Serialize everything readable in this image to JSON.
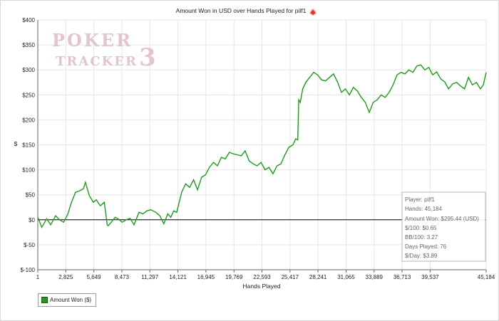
{
  "colors": {
    "series": "#1f9a1f",
    "grid": "#e6e6e6",
    "watermark": "#e3c6cb",
    "zero_line": "#000000",
    "spade_icon": "#d93a2b"
  },
  "watermark": {
    "line1": "POKER",
    "line2": "TRACKER",
    "numeral": "3"
  },
  "title_icon": "red-spade-icon",
  "chart_data": {
    "type": "line",
    "title": "Amount Won in USD over Hands Played for pilf1",
    "xlabel": "Hands Played",
    "ylabel": "$",
    "xlim": [
      1,
      45184
    ],
    "ylim": [
      -100,
      400
    ],
    "x_ticks": [
      1,
      2825,
      5649,
      8473,
      11297,
      14121,
      16945,
      19769,
      22593,
      25417,
      28241,
      31065,
      33889,
      36713,
      39537,
      45184
    ],
    "x_tick_labels": [
      "1",
      "2,825",
      "5,649",
      "8,473",
      "11,297",
      "14,121",
      "16,945",
      "19,769",
      "22,593",
      "25,417",
      "28,241",
      "31,065",
      "33,889",
      "36,713",
      "39,537",
      "45,184"
    ],
    "y_ticks": [
      -100,
      -50,
      0,
      50,
      100,
      150,
      200,
      250,
      300,
      350,
      400
    ],
    "y_tick_labels": [
      "$-100",
      "$-50",
      "$0",
      "$50",
      "$100",
      "$150",
      "$200",
      "$250",
      "$300",
      "$350",
      "$400"
    ],
    "grid": true,
    "legend_position": "bottom-left",
    "series": [
      {
        "name": "Amount Won ($)",
        "x": [
          1,
          400,
          900,
          1300,
          1800,
          2200,
          2600,
          3000,
          3400,
          3800,
          4200,
          4600,
          4800,
          5200,
          5600,
          5900,
          6300,
          6700,
          7000,
          7100,
          7400,
          7800,
          8100,
          8500,
          8900,
          9300,
          9700,
          10200,
          10600,
          11000,
          11400,
          11900,
          12300,
          12700,
          13100,
          13400,
          13700,
          14000,
          14500,
          14900,
          15300,
          15700,
          16100,
          16500,
          16900,
          17300,
          17700,
          18100,
          18500,
          18900,
          19300,
          19700,
          20100,
          20500,
          20900,
          21300,
          21700,
          22100,
          22500,
          22900,
          23300,
          23700,
          24100,
          24500,
          24900,
          25300,
          25700,
          26000,
          26200,
          26300,
          26450,
          26700,
          27000,
          27400,
          27800,
          28200,
          28600,
          29000,
          29400,
          29800,
          30200,
          30600,
          31000,
          31400,
          31800,
          32200,
          32600,
          33000,
          33400,
          33800,
          34200,
          34600,
          35000,
          35400,
          35800,
          36200,
          36600,
          37000,
          37400,
          37800,
          38200,
          38600,
          39000,
          39400,
          39800,
          40200,
          40600,
          41000,
          41400,
          41800,
          42200,
          42600,
          43000,
          43400,
          43800,
          44200,
          44600,
          44900,
          45184
        ],
        "values": [
          5,
          -15,
          2,
          -10,
          8,
          0,
          -5,
          10,
          35,
          55,
          58,
          62,
          75,
          48,
          35,
          40,
          28,
          35,
          -10,
          -12,
          -5,
          5,
          2,
          -5,
          0,
          3,
          -10,
          15,
          12,
          18,
          20,
          15,
          8,
          -8,
          12,
          5,
          18,
          15,
          55,
          72,
          65,
          80,
          60,
          85,
          90,
          105,
          115,
          108,
          125,
          122,
          135,
          132,
          130,
          128,
          138,
          118,
          112,
          108,
          115,
          100,
          105,
          92,
          108,
          112,
          130,
          145,
          150,
          162,
          160,
          240,
          235,
          262,
          275,
          285,
          295,
          290,
          280,
          278,
          285,
          292,
          276,
          255,
          262,
          250,
          265,
          258,
          245,
          235,
          215,
          235,
          240,
          250,
          245,
          255,
          270,
          290,
          295,
          292,
          300,
          295,
          308,
          310,
          300,
          305,
          290,
          296,
          282,
          276,
          262,
          272,
          275,
          268,
          262,
          285,
          270,
          275,
          262,
          270,
          295
        ]
      }
    ]
  },
  "info_box": {
    "player": "Player: pilf1",
    "hands": "Hands: 45,184",
    "amount_won": "Amount Won: $295.44 (USD)",
    "per100": "$/100: $0.65",
    "bb100": "BB/100: 3.27",
    "days": "Days Played: 76",
    "per_day": "$/Day: $3.89"
  }
}
